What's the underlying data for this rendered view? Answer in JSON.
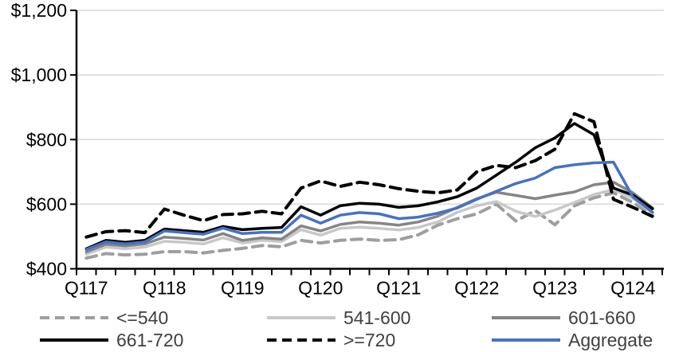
{
  "chart_data": {
    "type": "line",
    "title": "",
    "xlabel": "",
    "ylabel": "",
    "ylim": [
      400,
      1200
    ],
    "y_tick_interval": 200,
    "y_tick_labels": [
      "$400",
      "$600",
      "$800",
      "$1,000",
      "$1,200"
    ],
    "x_tick_labels_shown": [
      "Q117",
      "Q118",
      "Q119",
      "Q120",
      "Q121",
      "Q122",
      "Q123",
      "Q124"
    ],
    "grid": "horizontal-on",
    "legend_position": "bottom",
    "gridline_color": "#d9d9d9",
    "axis_color": "#000000",
    "legend_text_color": "#404040",
    "categories": [
      "Q117",
      "Q217",
      "Q317",
      "Q417",
      "Q118",
      "Q218",
      "Q318",
      "Q418",
      "Q119",
      "Q219",
      "Q319",
      "Q419",
      "Q120",
      "Q220",
      "Q320",
      "Q420",
      "Q121",
      "Q221",
      "Q321",
      "Q421",
      "Q122",
      "Q222",
      "Q322",
      "Q422",
      "Q123",
      "Q223",
      "Q323",
      "Q423",
      "Q124",
      "Q224"
    ],
    "series": [
      {
        "name": "<=540",
        "color": "#9e9e9e",
        "style": "dashed",
        "values": [
          433,
          447,
          443,
          445,
          453,
          453,
          449,
          457,
          463,
          472,
          468,
          488,
          480,
          488,
          492,
          488,
          490,
          505,
          535,
          555,
          570,
          600,
          548,
          580,
          536,
          595,
          620,
          635,
          605,
          565
        ]
      },
      {
        "name": "541-600",
        "color": "#c8c8c8",
        "style": "solid",
        "values": [
          445,
          467,
          462,
          467,
          485,
          482,
          477,
          496,
          480,
          488,
          484,
          521,
          504,
          525,
          529,
          525,
          520,
          528,
          545,
          575,
          595,
          608,
          578,
          562,
          582,
          605,
          630,
          645,
          618,
          572
        ]
      },
      {
        "name": "601-660",
        "color": "#858585",
        "style": "solid",
        "values": [
          452,
          476,
          471,
          477,
          498,
          494,
          489,
          509,
          488,
          496,
          492,
          533,
          517,
          537,
          545,
          541,
          535,
          545,
          563,
          590,
          617,
          637,
          627,
          617,
          628,
          638,
          660,
          668,
          635,
          588
        ]
      },
      {
        "name": "661-720",
        "color": "#000000",
        "style": "solid",
        "values": [
          462,
          488,
          482,
          488,
          523,
          518,
          513,
          531,
          521,
          525,
          528,
          592,
          566,
          595,
          603,
          600,
          590,
          595,
          607,
          623,
          650,
          690,
          730,
          775,
          805,
          850,
          815,
          650,
          628,
          586
        ]
      },
      {
        "name": ">=720",
        "color": "#000000",
        "style": "dashed",
        "values": [
          498,
          515,
          518,
          512,
          585,
          566,
          549,
          568,
          570,
          578,
          570,
          650,
          672,
          655,
          668,
          660,
          648,
          640,
          635,
          644,
          700,
          720,
          713,
          735,
          770,
          880,
          855,
          615,
          590,
          562
        ]
      },
      {
        "name": "Aggregate",
        "color": "#4472c4",
        "style": "solid",
        "values": [
          460,
          483,
          477,
          483,
          517,
          512,
          507,
          526,
          509,
          513,
          513,
          566,
          541,
          566,
          574,
          570,
          555,
          560,
          572,
          588,
          615,
          640,
          664,
          681,
          713,
          722,
          728,
          730,
          622,
          575
        ]
      }
    ],
    "legend_order": [
      "<=540",
      "541-600",
      "601-660",
      "661-720",
      ">=720",
      "Aggregate"
    ]
  }
}
